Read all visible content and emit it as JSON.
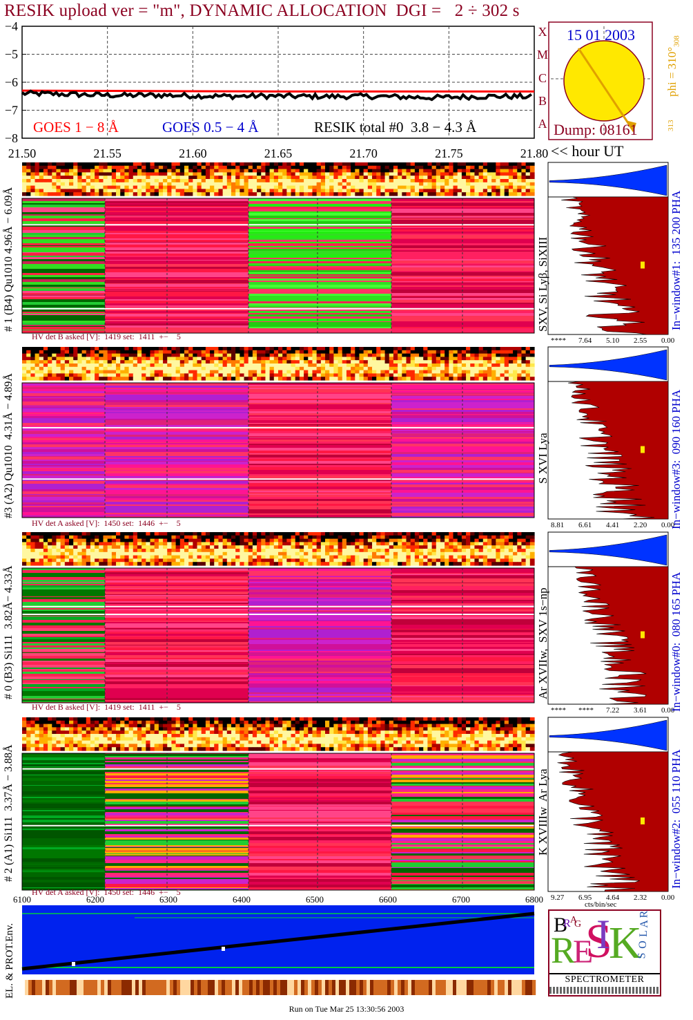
{
  "title": "RESIK upload ver = \"m\", DYNAMIC ALLOCATION  DGI =   2 ÷ 302 s",
  "colors": {
    "goes_long": "#ff0000",
    "goes_short": "#0000cd",
    "resik": "#000000",
    "title": "#8b0020",
    "spectrum": "#b00000",
    "distribution": "#0033ff",
    "sun": "#ffe800",
    "orbit_bg": "#0022ee"
  },
  "sun_panel": {
    "date": "15 01 2003",
    "dump": "Dump: 08161",
    "phi": "phi = 310°",
    "phi_sup": "308",
    "phi_low": "313",
    "scale_labels": [
      "X",
      "M",
      "C",
      "B",
      "A"
    ]
  },
  "chart_data": [
    {
      "type": "line",
      "title": "RESIK upload ver = \"m\", DYNAMIC ALLOCATION  DGI =   2 ÷ 302 s",
      "xlabel": "<< hour UT",
      "x_ticks": [
        "21.50",
        "21.55",
        "21.60",
        "21.65",
        "21.70",
        "21.75",
        "21.80"
      ],
      "y_ticks": [
        "−4",
        "−5",
        "−6",
        "−7",
        "−8"
      ],
      "xlim": [
        21.5,
        21.8
      ],
      "ylim": [
        -8,
        -4
      ],
      "grid": true,
      "series": [
        {
          "name": "GOES 1 − 8 Å",
          "color": "#ff0000",
          "x": [
            21.5,
            21.55,
            21.6,
            21.65,
            21.7,
            21.75,
            21.8
          ],
          "values": [
            -6.3,
            -6.31,
            -6.32,
            -6.33,
            -6.33,
            -6.33,
            -6.33
          ]
        },
        {
          "name": "GOES 0.5 − 4 Å",
          "color": "#0000cd",
          "x": [],
          "values": []
        },
        {
          "name": "RESIK total #0  3.8 − 4.3 Å",
          "color": "#000000",
          "x": [
            21.5,
            21.52,
            21.54,
            21.56,
            21.58,
            21.6,
            21.62,
            21.64,
            21.66,
            21.68,
            21.7,
            21.72,
            21.74,
            21.76,
            21.78,
            21.8
          ],
          "values": [
            -6.4,
            -6.42,
            -6.45,
            -6.47,
            -6.46,
            -6.48,
            -6.5,
            -6.49,
            -6.5,
            -6.51,
            -6.5,
            -6.52,
            -6.55,
            -6.52,
            -6.5,
            -6.52
          ]
        }
      ]
    },
    {
      "type": "heatmap",
      "detector": "# 1 (B4) Qu1010 4.96Å − 6.09Å",
      "lines": "SXV, Si Lyβ, SiXIII",
      "window": "In−window#1:  135 200 PHA",
      "hv": "HV det B asked [V]:  1419 set:  1411  +−    5",
      "spectrum_ticks": [
        "****",
        "7.64",
        "5.10",
        "2.55",
        "0.00"
      ]
    },
    {
      "type": "heatmap",
      "detector": "#3 (A2) Qu1010  4.31Å − 4.89Å",
      "lines": "S XVI Lya",
      "window": "In−window#3:  090 160 PHA",
      "hv": "HV det A asked [V]:  1450 set:  1446  +−    5",
      "spectrum_ticks": [
        "8.81",
        "6.61",
        "4.41",
        "2.20",
        "0.00"
      ]
    },
    {
      "type": "heatmap",
      "detector": "# 0 (B3) Si111  3.82Å− 4.33Å",
      "lines": "Ar XVIIw,  SXV 1s−np",
      "window": "In−window#0:  080 165 PHA",
      "hv": "HV det B asked [V]:  1419 set:  1411  +−    5",
      "spectrum_ticks": [
        "****",
        "****",
        "7.22",
        "3.61",
        "0.00"
      ]
    },
    {
      "type": "heatmap",
      "detector": "# 2 (A1) Si111  3.37Å − 3.88Å",
      "lines": "K XVIIIw  Ar Lya",
      "window": "In−window#2:  055 110 PHA",
      "hv": "HV det A asked [V]:  1450 set:  1446  +−    5",
      "spectrum_ticks": [
        "9.27",
        "6.95",
        "4.64",
        "2.32",
        "0.00"
      ],
      "spectrum_xlabel": "cts/bin/sec"
    },
    {
      "type": "area",
      "ylabel": "EL. & PROT.Env.",
      "x_ticks": [
        "6100",
        "6200",
        "6300",
        "6400",
        "6500",
        "6600",
        "6700",
        "6800"
      ],
      "xlim": [
        6100,
        6800
      ]
    }
  ],
  "logo": {
    "letters": [
      "B",
      "R",
      "A",
      "G",
      "R",
      "E",
      "S",
      "I",
      "K",
      "S",
      "O",
      "L",
      "A",
      "R"
    ],
    "caption": "SPECTROMETER"
  },
  "footer": "Run on Tue Mar 25 13:30:56 2003"
}
